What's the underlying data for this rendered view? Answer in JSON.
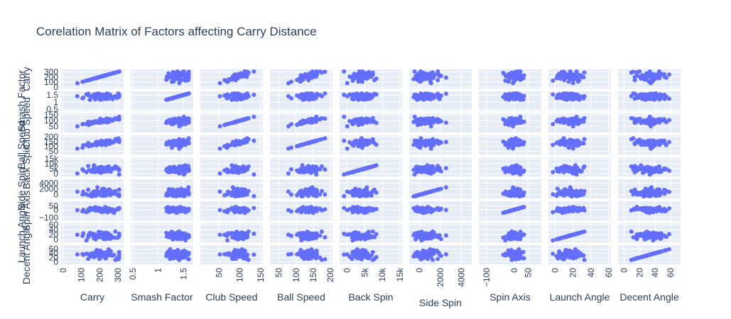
{
  "chart_data": {
    "type": "scatter",
    "title": "Corelation Matrix of Factors affecting Carry Distance",
    "subplot_background": "#E5ECF6",
    "grid_color": "#ffffff",
    "marker_color": "#636EFA",
    "text_color": "#2a3f5f",
    "grid": true,
    "legend": "none",
    "dimensions": [
      {
        "name": "Carry",
        "range": [
          0,
          320
        ],
        "ticks": [
          {
            "v": 0,
            "label": "0"
          },
          {
            "v": 100,
            "label": "100"
          },
          {
            "v": 200,
            "label": "200"
          },
          {
            "v": 300,
            "label": "300"
          }
        ],
        "center": 210,
        "spread": 60
      },
      {
        "name": "Smash Factor",
        "range": [
          0.5,
          1.65
        ],
        "ticks": [
          {
            "v": 0.5,
            "label": "0.5"
          },
          {
            "v": 1,
            "label": "1"
          },
          {
            "v": 1.5,
            "label": "1.5"
          }
        ],
        "center": 1.4,
        "spread": 0.12
      },
      {
        "name": "Club Speed",
        "range": [
          10,
          150
        ],
        "ticks": [
          {
            "v": 50,
            "label": "50"
          },
          {
            "v": 100,
            "label": "100"
          },
          {
            "v": 150,
            "label": "150"
          }
        ],
        "center": 95,
        "spread": 18
      },
      {
        "name": "Ball Speed",
        "range": [
          30,
          200
        ],
        "ticks": [
          {
            "v": 50,
            "label": "50"
          },
          {
            "v": 100,
            "label": "100"
          },
          {
            "v": 150,
            "label": "150"
          },
          {
            "v": 200,
            "label": "200"
          }
        ],
        "center": 135,
        "spread": 25
      },
      {
        "name": "Back Spin",
        "range": [
          -1500,
          15000
        ],
        "ticks": [
          {
            "v": 0,
            "label": "0"
          },
          {
            "v": 5000,
            "label": "5k"
          },
          {
            "v": 10000,
            "label": "10k"
          },
          {
            "v": 15000,
            "label": "15k"
          }
        ],
        "center": 3800,
        "spread": 1800
      },
      {
        "name": "Side Spin",
        "range": [
          -800,
          4800
        ],
        "ticks": [
          {
            "v": 0,
            "label": "0"
          },
          {
            "v": 2000,
            "label": "2000"
          },
          {
            "v": 4000,
            "label": "4000"
          }
        ],
        "center": 600,
        "spread": 700
      },
      {
        "name": "Spin Axis",
        "range": [
          -120,
          90
        ],
        "ticks": [
          {
            "v": -100,
            "label": "−100"
          },
          {
            "v": 0,
            "label": "0"
          },
          {
            "v": 50,
            "label": "50"
          }
        ],
        "center": 0,
        "spread": 15
      },
      {
        "name": "Launch Angle",
        "range": [
          -5,
          60
        ],
        "ticks": [
          {
            "v": 0,
            "label": "0"
          },
          {
            "v": 20,
            "label": "20"
          },
          {
            "v": 40,
            "label": "40"
          },
          {
            "v": 60,
            "label": "60"
          }
        ],
        "center": 17,
        "spread": 7
      },
      {
        "name": "Decent Angle",
        "range": [
          -5,
          70
        ],
        "ticks": [
          {
            "v": 0,
            "label": "0"
          },
          {
            "v": 20,
            "label": "20"
          },
          {
            "v": 40,
            "label": "40"
          },
          {
            "v": 60,
            "label": "60"
          }
        ],
        "center": 35,
        "spread": 10
      }
    ]
  }
}
